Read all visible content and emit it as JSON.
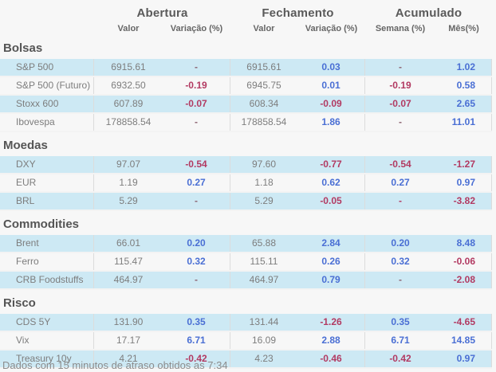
{
  "header": {
    "groups": [
      {
        "label": "Abertura"
      },
      {
        "label": "Fechamento"
      },
      {
        "label": "Acumulado"
      }
    ],
    "subheaders": [
      "Valor",
      "Variação (%)",
      "Valor",
      "Variação (%)",
      "Semana (%)",
      "Mês(%)"
    ]
  },
  "colors": {
    "positive": "#4a6fd4",
    "negative": "#b23a62",
    "row_highlight": "#cde9f4",
    "background": "#f7f7f7"
  },
  "sections": [
    {
      "title": "Bolsas",
      "rows": [
        {
          "name": "S&P 500",
          "highlight": true,
          "cells": [
            [
              "6915.61",
              "val"
            ],
            [
              "-",
              "dash"
            ],
            [
              "6915.61",
              "val"
            ],
            [
              "0.03",
              "pos"
            ],
            [
              "-",
              "dash"
            ],
            [
              "1.02",
              "pos"
            ]
          ]
        },
        {
          "name": "S&P 500 (Futuro)",
          "highlight": false,
          "cells": [
            [
              "6932.50",
              "val"
            ],
            [
              "-0.19",
              "neg"
            ],
            [
              "6945.75",
              "val"
            ],
            [
              "0.01",
              "pos"
            ],
            [
              "-0.19",
              "neg"
            ],
            [
              "0.58",
              "pos"
            ]
          ]
        },
        {
          "name": "Stoxx 600",
          "highlight": true,
          "cells": [
            [
              "607.89",
              "val"
            ],
            [
              "-0.07",
              "neg"
            ],
            [
              "608.34",
              "val"
            ],
            [
              "-0.09",
              "neg"
            ],
            [
              "-0.07",
              "neg"
            ],
            [
              "2.65",
              "pos"
            ]
          ]
        },
        {
          "name": "Ibovespa",
          "highlight": false,
          "cells": [
            [
              "178858.54",
              "val"
            ],
            [
              "-",
              "dash"
            ],
            [
              "178858.54",
              "val"
            ],
            [
              "1.86",
              "pos"
            ],
            [
              "-",
              "dash"
            ],
            [
              "11.01",
              "pos"
            ]
          ]
        }
      ]
    },
    {
      "title": "Moedas",
      "rows": [
        {
          "name": "DXY",
          "highlight": true,
          "cells": [
            [
              "97.07",
              "val"
            ],
            [
              "-0.54",
              "neg"
            ],
            [
              "97.60",
              "val"
            ],
            [
              "-0.77",
              "neg"
            ],
            [
              "-0.54",
              "neg"
            ],
            [
              "-1.27",
              "neg"
            ]
          ]
        },
        {
          "name": "EUR",
          "highlight": false,
          "cells": [
            [
              "1.19",
              "val"
            ],
            [
              "0.27",
              "pos"
            ],
            [
              "1.18",
              "val"
            ],
            [
              "0.62",
              "pos"
            ],
            [
              "0.27",
              "pos"
            ],
            [
              "0.97",
              "pos"
            ]
          ]
        },
        {
          "name": "BRL",
          "highlight": true,
          "cells": [
            [
              "5.29",
              "val"
            ],
            [
              "-",
              "dash"
            ],
            [
              "5.29",
              "val"
            ],
            [
              "-0.05",
              "neg"
            ],
            [
              "-",
              "neg"
            ],
            [
              "-3.82",
              "neg"
            ]
          ]
        }
      ]
    },
    {
      "title": "Commodities",
      "rows": [
        {
          "name": "Brent",
          "highlight": true,
          "cells": [
            [
              "66.01",
              "val"
            ],
            [
              "0.20",
              "pos"
            ],
            [
              "65.88",
              "val"
            ],
            [
              "2.84",
              "pos"
            ],
            [
              "0.20",
              "pos"
            ],
            [
              "8.48",
              "pos"
            ]
          ]
        },
        {
          "name": "Ferro",
          "highlight": false,
          "cells": [
            [
              "115.47",
              "val"
            ],
            [
              "0.32",
              "pos"
            ],
            [
              "115.11",
              "val"
            ],
            [
              "0.26",
              "pos"
            ],
            [
              "0.32",
              "pos"
            ],
            [
              "-0.06",
              "neg"
            ]
          ]
        },
        {
          "name": "CRB Foodstuffs",
          "highlight": true,
          "cells": [
            [
              "464.97",
              "val"
            ],
            [
              "-",
              "dash"
            ],
            [
              "464.97",
              "val"
            ],
            [
              "0.79",
              "pos"
            ],
            [
              "-",
              "dash"
            ],
            [
              "-2.08",
              "neg"
            ]
          ]
        }
      ]
    },
    {
      "title": "Risco",
      "rows": [
        {
          "name": "CDS 5Y",
          "highlight": true,
          "cells": [
            [
              "131.90",
              "val"
            ],
            [
              "0.35",
              "pos"
            ],
            [
              "131.44",
              "val"
            ],
            [
              "-1.26",
              "neg"
            ],
            [
              "0.35",
              "pos"
            ],
            [
              "-4.65",
              "neg"
            ]
          ]
        },
        {
          "name": "Vix",
          "highlight": false,
          "cells": [
            [
              "17.17",
              "val"
            ],
            [
              "6.71",
              "pos"
            ],
            [
              "16.09",
              "val"
            ],
            [
              "2.88",
              "pos"
            ],
            [
              "6.71",
              "pos"
            ],
            [
              "14.85",
              "pos"
            ]
          ]
        },
        {
          "name": "Treasury 10y",
          "highlight": true,
          "cells": [
            [
              "4.21",
              "val"
            ],
            [
              "-0.42",
              "neg"
            ],
            [
              "4.23",
              "val"
            ],
            [
              "-0.46",
              "neg"
            ],
            [
              "-0.42",
              "neg"
            ],
            [
              "0.97",
              "pos"
            ]
          ]
        }
      ]
    }
  ],
  "footer": "Dados com 15 minutos de atraso obtidos as 7:34"
}
